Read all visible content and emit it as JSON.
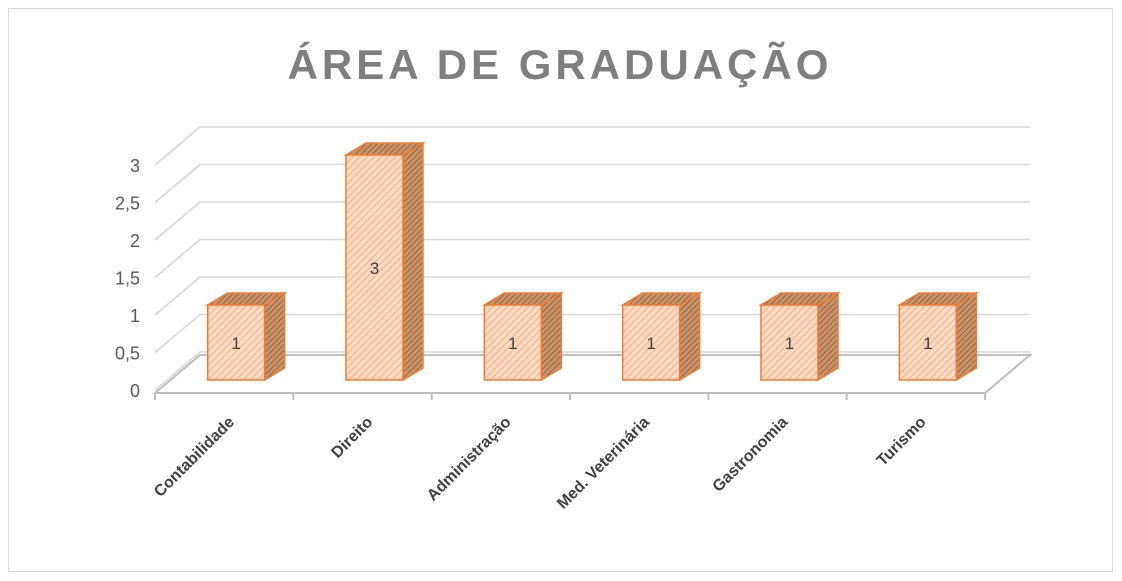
{
  "chart_data": {
    "type": "bar3d",
    "title": "ÁREA DE GRADUAÇÃO",
    "categories": [
      "Contabilidade",
      "Direito",
      "Administração",
      "Med. Veterinária",
      "Gastronomia",
      "Turismo"
    ],
    "values": [
      1,
      3,
      1,
      1,
      1,
      1
    ],
    "color": "#ed7d31",
    "ylim": [
      0,
      3
    ],
    "yticks": [
      0,
      {
        "value": 0.5,
        "label": "0,5"
      },
      1,
      {
        "value": 1.5,
        "label": "1,5"
      },
      2,
      {
        "value": 2.5,
        "label": "2,5"
      },
      3
    ],
    "grid": true
  }
}
